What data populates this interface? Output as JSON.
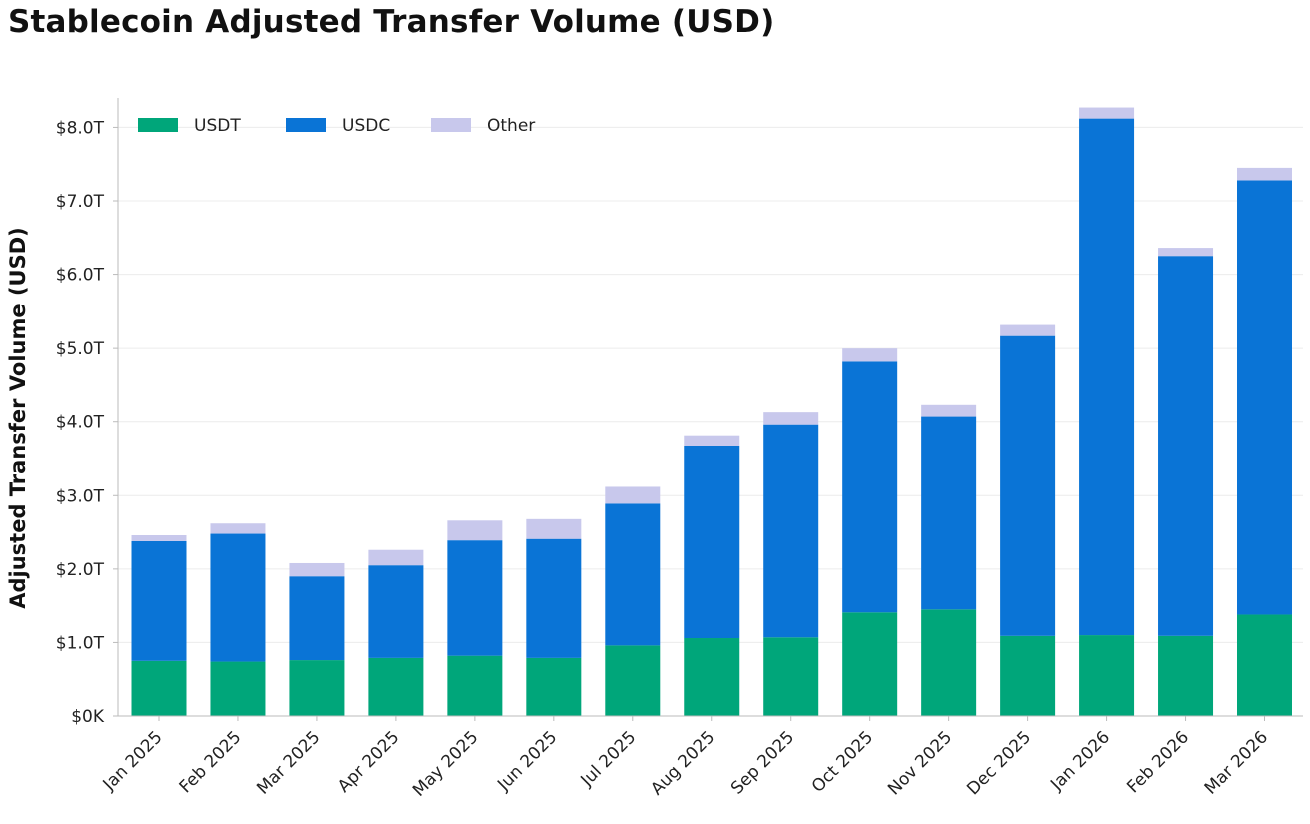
{
  "chart_data": {
    "type": "bar",
    "stacked": true,
    "title": "Stablecoin Adjusted Transfer Volume (USD)",
    "xlabel": "",
    "ylabel": "Adjusted Transfer Volume (USD)",
    "categories": [
      "Jan 2025",
      "Feb 2025",
      "Mar 2025",
      "Apr 2025",
      "May 2025",
      "Jun 2025",
      "Jul 2025",
      "Aug 2025",
      "Sep 2025",
      "Oct 2025",
      "Nov 2025",
      "Dec 2025",
      "Jan 2026",
      "Feb 2026",
      "Mar 2026"
    ],
    "series": [
      {
        "name": "USDT",
        "color": "#00a67a",
        "values": [
          0.75,
          0.74,
          0.76,
          0.79,
          0.82,
          0.79,
          0.96,
          1.06,
          1.07,
          1.41,
          1.45,
          1.09,
          1.1,
          1.09,
          1.38
        ]
      },
      {
        "name": "USDC",
        "color": "#0a74d6",
        "values": [
          1.63,
          1.74,
          1.14,
          1.26,
          1.57,
          1.62,
          1.93,
          2.61,
          2.89,
          3.41,
          2.62,
          4.08,
          7.02,
          5.16,
          5.9
        ]
      },
      {
        "name": "Other",
        "color": "#c8c8ec",
        "values": [
          0.08,
          0.14,
          0.18,
          0.21,
          0.27,
          0.27,
          0.23,
          0.14,
          0.17,
          0.18,
          0.16,
          0.15,
          0.15,
          0.11,
          0.17
        ]
      }
    ],
    "ylim": [
      0,
      8.4
    ],
    "y_ticks": [
      0,
      1,
      2,
      3,
      4,
      5,
      6,
      7,
      8
    ],
    "y_tick_labels": [
      "$0K",
      "$1.0T",
      "$2.0T",
      "$3.0T",
      "$4.0T",
      "$5.0T",
      "$6.0T",
      "$7.0T",
      "$8.0T"
    ],
    "unit": "trillion USD",
    "grid": true,
    "legend_position": "top-left"
  }
}
